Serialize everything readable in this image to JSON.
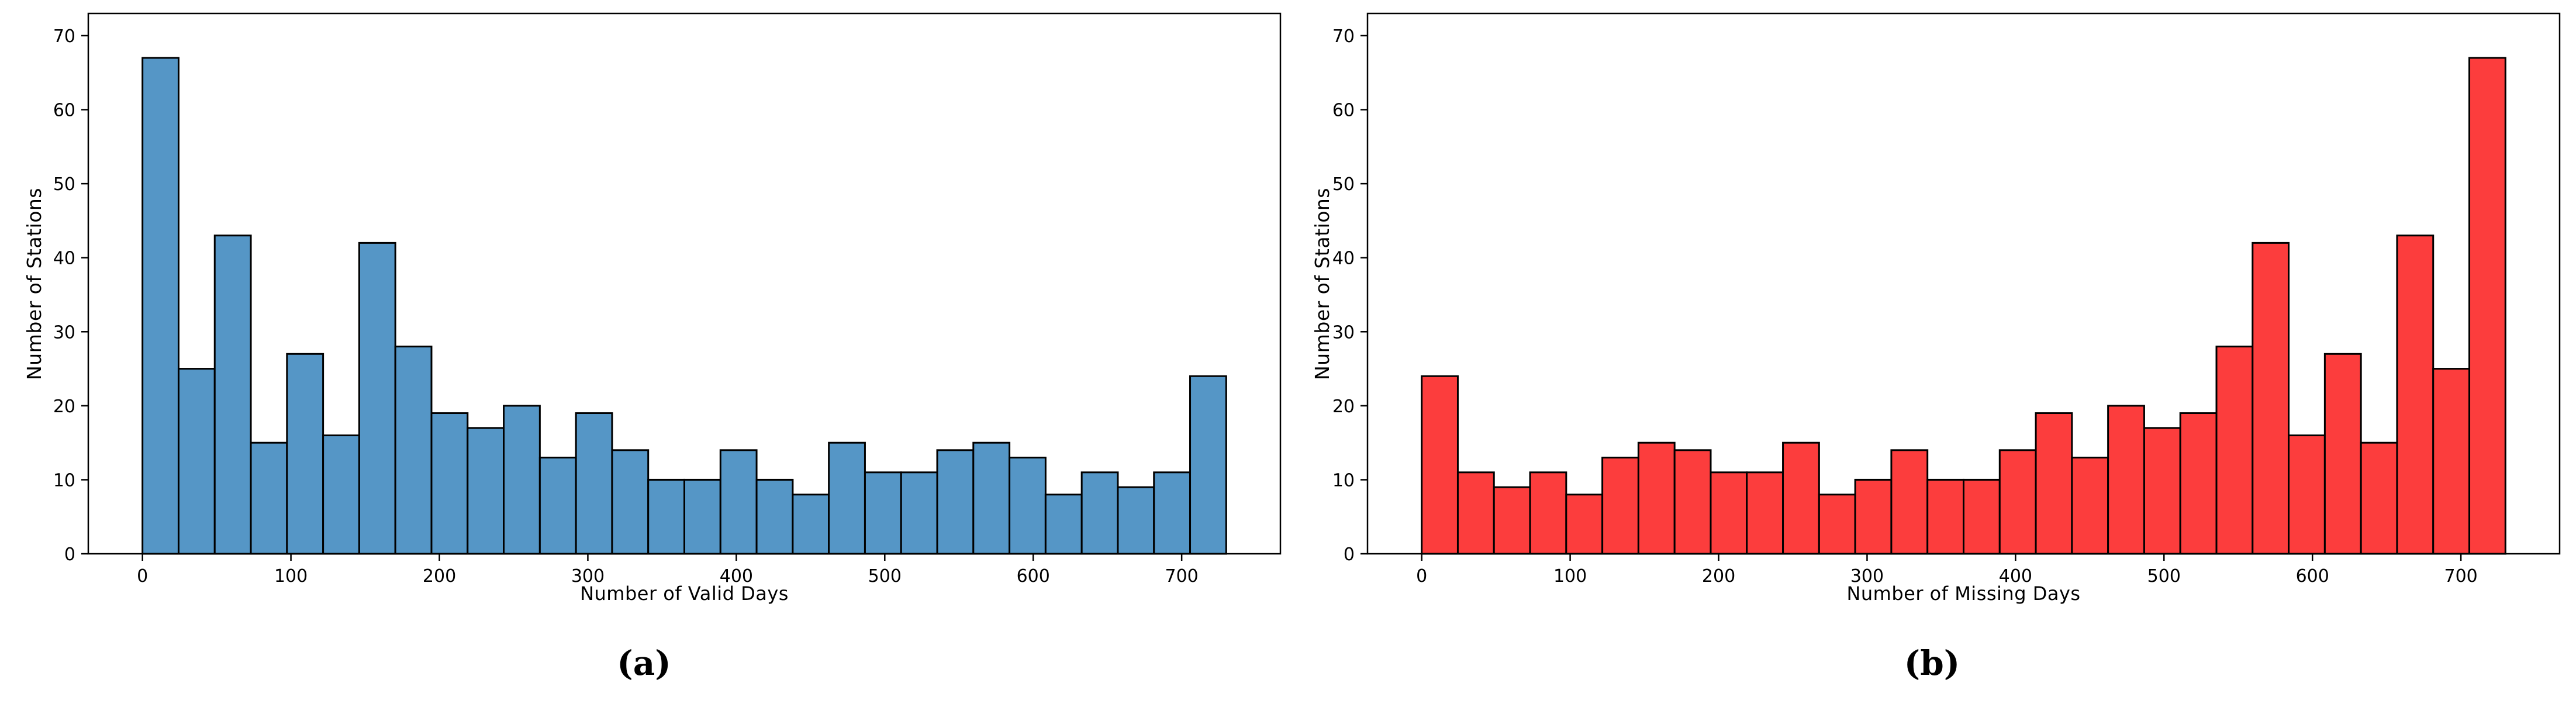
{
  "figure": {
    "background_color": "#ffffff",
    "text_color": "#000000"
  },
  "chart_data": [
    {
      "type": "bar",
      "subtype": "histogram",
      "panel_label": "(a)",
      "xlabel": "Number of Valid Days",
      "ylabel": "Number of Stations",
      "bar_color": "#5596c6",
      "edge_color": "#000000",
      "bin_start": 0,
      "bin_end": 730,
      "bin_width": 24.333,
      "counts": [
        67,
        25,
        43,
        15,
        27,
        16,
        42,
        28,
        19,
        17,
        20,
        13,
        19,
        14,
        10,
        10,
        14,
        10,
        8,
        15,
        11,
        11,
        14,
        15,
        13,
        8,
        11,
        9,
        11,
        24
      ],
      "xticks": [
        0,
        100,
        200,
        300,
        400,
        500,
        600,
        700
      ],
      "yticks": [
        0,
        10,
        20,
        30,
        40,
        50,
        60,
        70
      ],
      "xlim": [
        -36.5,
        766.5
      ],
      "ylim": [
        0,
        73
      ],
      "grid": false,
      "legend": null
    },
    {
      "type": "bar",
      "subtype": "histogram",
      "panel_label": "(b)",
      "xlabel": "Number of Missing Days",
      "ylabel": "Number of Stations",
      "bar_color": "#fc3d3d",
      "edge_color": "#000000",
      "bin_start": 0,
      "bin_end": 730,
      "bin_width": 24.333,
      "counts": [
        24,
        11,
        9,
        11,
        8,
        13,
        15,
        14,
        11,
        11,
        15,
        8,
        10,
        14,
        10,
        10,
        14,
        19,
        13,
        20,
        17,
        19,
        28,
        42,
        16,
        27,
        15,
        43,
        25,
        67
      ],
      "xticks": [
        0,
        100,
        200,
        300,
        400,
        500,
        600,
        700
      ],
      "yticks": [
        0,
        10,
        20,
        30,
        40,
        50,
        60,
        70
      ],
      "xlim": [
        -36.5,
        766.5
      ],
      "ylim": [
        0,
        73
      ],
      "grid": false,
      "legend": null
    }
  ]
}
